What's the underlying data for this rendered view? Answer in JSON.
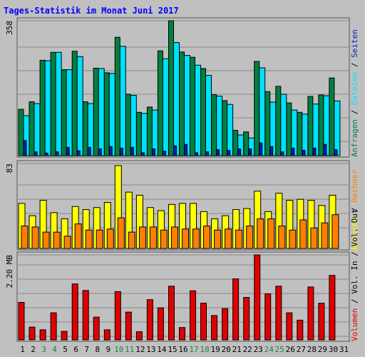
{
  "chart_data": [
    {
      "type": "bar",
      "title": "Tages-Statistik im Monat Juni 2017",
      "ylabel_parts": [
        "Anfragen",
        "Dateien",
        "Seiten"
      ],
      "tick_label": "358",
      "ylim": [
        0,
        358
      ],
      "categories": [
        "1",
        "2",
        "3",
        "4",
        "5",
        "6",
        "7",
        "8",
        "9",
        "10",
        "11",
        "12",
        "13",
        "14",
        "15",
        "16",
        "17",
        "18",
        "19",
        "20",
        "21",
        "22",
        "23",
        "24",
        "25",
        "26",
        "27",
        "28",
        "29",
        "30",
        "31"
      ],
      "weekend_days": [
        "3",
        "4",
        "10",
        "11",
        "17",
        "18",
        "24",
        "25"
      ],
      "grid": true,
      "series": [
        {
          "name": "Anfragen",
          "color": "#008040",
          "values": [
            123,
            143,
            253,
            274,
            228,
            277,
            143,
            232,
            220,
            314,
            163,
            115,
            129,
            278,
            358,
            275,
            261,
            231,
            162,
            146,
            67,
            63,
            250,
            170,
            184,
            140,
            115,
            157,
            161,
            206,
            null
          ]
        },
        {
          "name": "Dateien",
          "color": "#00e0ff",
          "values": [
            106,
            138,
            252,
            274,
            228,
            263,
            138,
            231,
            218,
            290,
            160,
            112,
            121,
            257,
            300,
            266,
            240,
            213,
            158,
            136,
            55,
            47,
            233,
            142,
            163,
            121,
            110,
            137,
            159,
            145,
            null
          ]
        },
        {
          "name": "Seiten",
          "color": "#0020c0",
          "values": [
            40,
            10,
            7,
            10,
            22,
            13,
            22,
            18,
            24,
            20,
            22,
            8,
            18,
            12,
            26,
            30,
            8,
            10,
            16,
            14,
            18,
            18,
            34,
            24,
            10,
            20,
            14,
            20,
            30,
            16,
            null
          ]
        }
      ]
    },
    {
      "type": "bar",
      "ylabel_parts": [
        "Besuche",
        "Rechner"
      ],
      "tick_label": "83",
      "ylim": [
        0,
        83
      ],
      "categories": [
        "1",
        "2",
        "3",
        "4",
        "5",
        "6",
        "7",
        "8",
        "9",
        "10",
        "11",
        "12",
        "13",
        "14",
        "15",
        "16",
        "17",
        "18",
        "19",
        "20",
        "21",
        "22",
        "23",
        "24",
        "25",
        "26",
        "27",
        "28",
        "29",
        "30",
        "31"
      ],
      "grid": true,
      "series": [
        {
          "name": "Besuche",
          "color": "#ffff00",
          "values": [
            44,
            32,
            47,
            35,
            29,
            41,
            38,
            40,
            45,
            81,
            55,
            52,
            40,
            37,
            43,
            44,
            44,
            36,
            29,
            32,
            38,
            39,
            56,
            36,
            54,
            47,
            48,
            47,
            42,
            52,
            null
          ]
        },
        {
          "name": "Rechner",
          "color": "#ff8000",
          "values": [
            22,
            21,
            16,
            16,
            12,
            24,
            18,
            18,
            19,
            30,
            16,
            21,
            21,
            18,
            21,
            19,
            19,
            22,
            18,
            19,
            18,
            22,
            29,
            29,
            22,
            18,
            28,
            20,
            25,
            33,
            null
          ]
        }
      ]
    },
    {
      "type": "bar",
      "ylabel_parts": [
        "Volumen",
        "Vol. In",
        "Vol. Out"
      ],
      "tick_label": "2.20 MB",
      "ylim": [
        0,
        2.2
      ],
      "categories": [
        "1",
        "2",
        "3",
        "4",
        "5",
        "6",
        "7",
        "8",
        "9",
        "10",
        "11",
        "12",
        "13",
        "14",
        "15",
        "16",
        "17",
        "18",
        "19",
        "20",
        "21",
        "22",
        "23",
        "24",
        "25",
        "26",
        "27",
        "28",
        "29",
        "30",
        "31"
      ],
      "grid": true,
      "series": [
        {
          "name": "Volumen",
          "color": "#e00000",
          "values": [
            0.97,
            0.33,
            0.26,
            0.7,
            0.22,
            1.45,
            1.28,
            0.59,
            0.26,
            1.25,
            0.72,
            0.21,
            1.04,
            0.83,
            1.39,
            0.32,
            1.27,
            0.95,
            0.63,
            0.81,
            1.58,
            1.1,
            2.2,
            1.19,
            1.39,
            0.7,
            0.51,
            1.37,
            0.95,
            1.67,
            null
          ]
        }
      ]
    }
  ]
}
